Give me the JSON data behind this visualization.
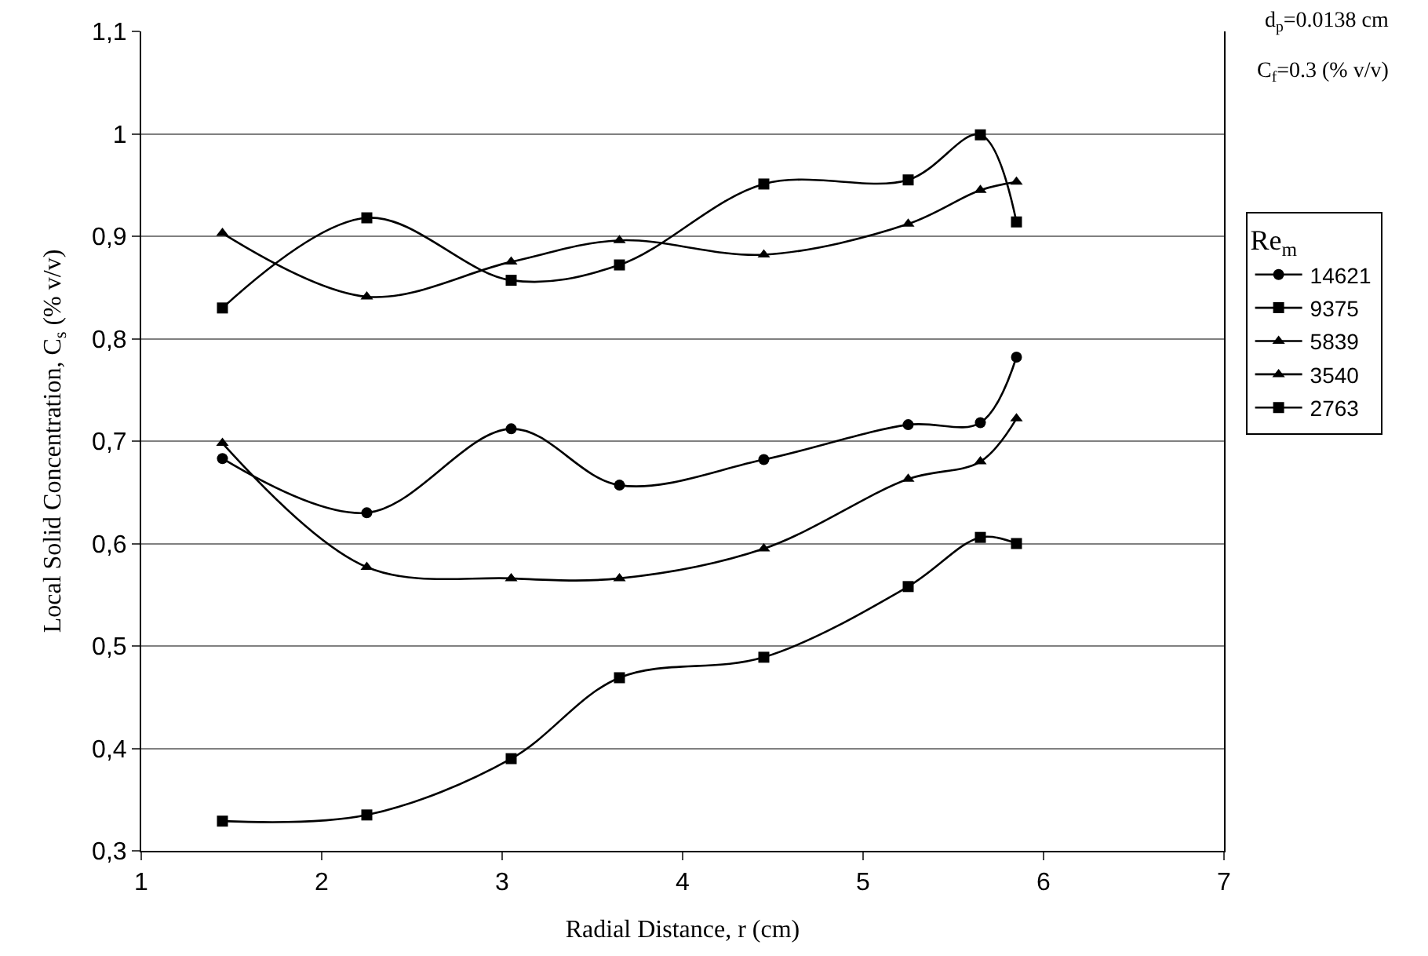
{
  "chart_data": {
    "type": "line",
    "xlabel": "Radial Distance, r (cm)",
    "ylabel": "Local Solid Concentration, C$_{s}$ (% v/v)",
    "legend_title": "Re$_{m}$",
    "annotations": [
      "d$_{p}$=0.0138 cm",
      "C$_{f}$=0.3 (% v/v)"
    ],
    "x": [
      1.45,
      2.25,
      3.05,
      3.65,
      4.45,
      5.25,
      5.65,
      5.85
    ],
    "series": [
      {
        "name": "14621",
        "color": "#000000",
        "marker": "circle",
        "values": [
          0.683,
          0.63,
          0.712,
          0.657,
          0.682,
          0.716,
          0.718,
          0.782
        ]
      },
      {
        "name": "9375",
        "color": "#000000",
        "marker": "square",
        "values": [
          0.83,
          0.918,
          0.857,
          0.872,
          0.951,
          0.955,
          0.999,
          0.914
        ]
      },
      {
        "name": "5839",
        "color": "#000000",
        "marker": "triangle",
        "values": [
          0.903,
          0.841,
          0.875,
          0.896,
          0.882,
          0.912,
          0.945,
          0.953
        ]
      },
      {
        "name": "3540",
        "color": "#000000",
        "marker": "triangle",
        "values": [
          0.698,
          0.577,
          0.566,
          0.566,
          0.595,
          0.663,
          0.68,
          0.722
        ]
      },
      {
        "name": "2763",
        "color": "#000000",
        "marker": "square",
        "values": [
          0.329,
          0.335,
          0.39,
          0.469,
          0.489,
          0.558,
          0.606,
          0.6
        ]
      }
    ],
    "xlim": [
      1,
      7
    ],
    "xticks": [
      1,
      2,
      3,
      4,
      5,
      6,
      7
    ],
    "ylim": [
      0.3,
      1.1
    ],
    "yticks": [
      {
        "value": 0.3,
        "label": "0,3"
      },
      {
        "value": 0.4,
        "label": "0,4"
      },
      {
        "value": 0.5,
        "label": "0,5"
      },
      {
        "value": 0.6,
        "label": "0,6"
      },
      {
        "value": 0.7,
        "label": "0,7"
      },
      {
        "value": 0.8,
        "label": "0,8"
      },
      {
        "value": 0.9,
        "label": "0,9"
      },
      {
        "value": 1,
        "label": "1"
      },
      {
        "value": 1.1,
        "label": "1,1"
      }
    ],
    "grid": "y",
    "legend": "right",
    "line_style": "solid"
  }
}
